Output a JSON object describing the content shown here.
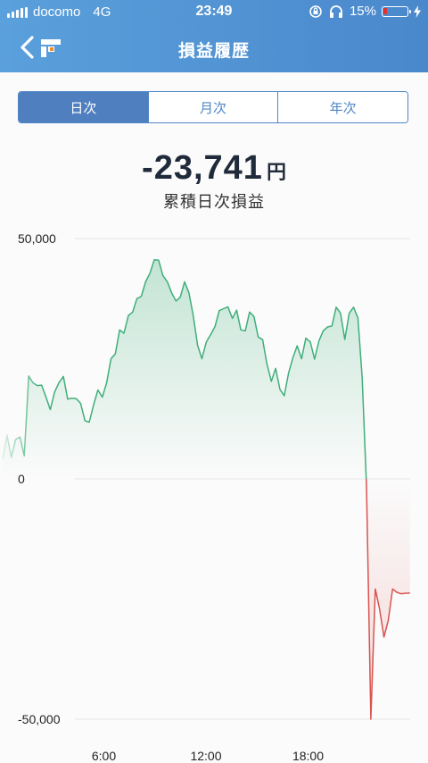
{
  "status_bar": {
    "carrier": "docomo",
    "network": "4G",
    "time": "23:49",
    "battery": "15%"
  },
  "nav": {
    "title": "損益履歴"
  },
  "tabs": [
    {
      "label": "日次",
      "active": true
    },
    {
      "label": "月次",
      "active": false
    },
    {
      "label": "年次",
      "active": false
    }
  ],
  "summary": {
    "amount": "-23,741",
    "unit": "円",
    "caption": "累積日次損益"
  },
  "colors": {
    "header": "#4f8fd4",
    "positive_line": "#3fae7a",
    "negative_line": "#d9534f",
    "tab_accent": "#4f7fbf"
  },
  "chart_data": {
    "type": "area",
    "y_ticks": [
      "50,000",
      "0",
      "-50,000"
    ],
    "x_ticks": [
      "6:00",
      "12:00",
      "18:00"
    ],
    "ylim": [
      -50000,
      50000
    ],
    "xlim": [
      0,
      24
    ],
    "grid": true,
    "x": [
      0.05,
      0.31,
      0.56,
      0.81,
      1.07,
      1.32,
      1.58,
      1.83,
      2.09,
      2.34,
      2.6,
      2.85,
      3.11,
      3.36,
      3.62,
      3.87,
      4.13,
      4.38,
      4.63,
      4.89,
      5.14,
      5.4,
      5.65,
      5.91,
      6.16,
      6.42,
      6.67,
      6.93,
      7.18,
      7.44,
      7.69,
      7.94,
      8.2,
      8.45,
      8.71,
      8.96,
      9.22,
      9.47,
      9.73,
      9.98,
      10.24,
      10.49,
      10.74,
      11.0,
      11.25,
      11.51,
      11.76,
      12.02,
      12.27,
      12.53,
      12.78,
      13.04,
      13.29,
      13.55,
      13.8,
      14.05,
      14.31,
      14.56,
      14.82,
      15.07,
      15.33,
      15.58,
      15.84,
      16.09,
      16.35,
      16.6,
      16.85,
      17.11,
      17.36,
      17.62,
      17.87,
      18.13,
      18.38,
      18.64,
      18.89,
      19.15,
      19.4,
      19.65,
      19.91,
      20.16,
      20.42,
      20.67,
      20.93,
      21.18,
      21.44,
      21.69,
      21.95,
      22.2,
      22.46,
      22.71,
      22.97,
      23.22,
      23.48,
      23.73,
      23.99
    ],
    "values": [
      4100,
      9100,
      4500,
      8200,
      8700,
      4800,
      21400,
      20000,
      19400,
      19500,
      17000,
      14400,
      18100,
      20000,
      21300,
      16600,
      16800,
      16700,
      15700,
      12100,
      11800,
      15400,
      18500,
      17000,
      20000,
      25000,
      26000,
      31000,
      30300,
      34000,
      34700,
      37500,
      38000,
      41000,
      42800,
      45600,
      45500,
      42300,
      41000,
      38700,
      37000,
      37800,
      41000,
      38700,
      34000,
      27800,
      25000,
      28500,
      30000,
      31700,
      35000,
      35400,
      35800,
      33400,
      35100,
      31000,
      30800,
      34700,
      33800,
      29500,
      29000,
      24000,
      20300,
      23000,
      18600,
      17300,
      22000,
      25200,
      27700,
      25000,
      29300,
      28500,
      24900,
      28700,
      30800,
      31600,
      31800,
      35700,
      34500,
      29000,
      34500,
      35700,
      33500,
      21000,
      -2000,
      -50000,
      -22900,
      -27000,
      -32900,
      -29500,
      -22900,
      -23600,
      -23900,
      -23800,
      -23741
    ]
  }
}
